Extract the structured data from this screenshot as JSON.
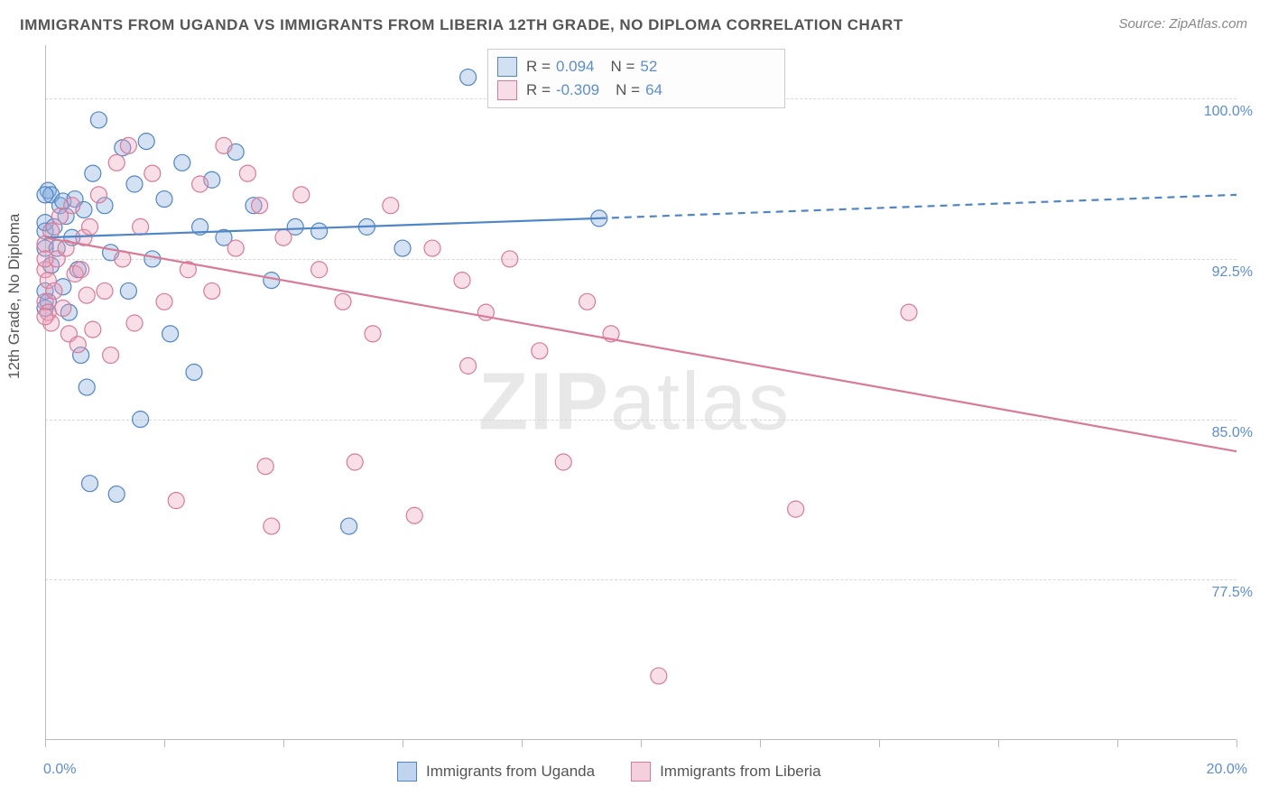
{
  "title": "IMMIGRANTS FROM UGANDA VS IMMIGRANTS FROM LIBERIA 12TH GRADE, NO DIPLOMA CORRELATION CHART",
  "source": "Source: ZipAtlas.com",
  "y_axis_label": "12th Grade, No Diploma",
  "watermark_left": "ZIP",
  "watermark_right": "atlas",
  "chart": {
    "type": "scatter",
    "background_color": "#ffffff",
    "grid_color": "#d8d8d8",
    "axis_color": "#bbbbbb",
    "tick_label_color": "#5b8dd6",
    "font_family": "Arial",
    "title_fontsize": 17,
    "label_fontsize": 17,
    "tick_fontsize": 16,
    "xlim": [
      0.0,
      20.0
    ],
    "ylim": [
      70.0,
      102.5
    ],
    "x_ticks": [
      0.0,
      2.0,
      4.0,
      6.0,
      8.0,
      10.0,
      12.0,
      14.0,
      16.0,
      18.0,
      20.0
    ],
    "y_ticks": [
      77.5,
      85.0,
      92.5,
      100.0
    ],
    "x_tick_labels": [
      "0.0%",
      "20.0%"
    ],
    "y_tick_labels": [
      "77.5%",
      "85.0%",
      "92.5%",
      "100.0%"
    ],
    "marker_radius": 9,
    "marker_opacity": 0.45,
    "line_width": 2.2,
    "series": [
      {
        "name": "Immigrants from Uganda",
        "color": "#6fa3df",
        "stroke": "#4f86c6",
        "fill": "rgba(130,170,220,0.35)",
        "r": 0.094,
        "n": 52,
        "trend": {
          "x1": 0.0,
          "y1": 93.5,
          "x2": 9.3,
          "y2": 94.4,
          "x2_ext": 20.0,
          "y2_ext": 95.5
        },
        "points": [
          [
            0.0,
            93.0
          ],
          [
            0.0,
            93.8
          ],
          [
            0.0,
            91.0
          ],
          [
            0.0,
            90.2
          ],
          [
            0.0,
            94.2
          ],
          [
            0.05,
            95.7
          ],
          [
            0.05,
            90.5
          ],
          [
            0.1,
            92.2
          ],
          [
            0.1,
            95.5
          ],
          [
            0.15,
            94.0
          ],
          [
            0.2,
            93.0
          ],
          [
            0.25,
            95.0
          ],
          [
            0.3,
            95.2
          ],
          [
            0.3,
            91.2
          ],
          [
            0.35,
            94.5
          ],
          [
            0.4,
            90.0
          ],
          [
            0.45,
            93.5
          ],
          [
            0.5,
            95.3
          ],
          [
            0.55,
            92.0
          ],
          [
            0.6,
            88.0
          ],
          [
            0.65,
            94.8
          ],
          [
            0.7,
            86.5
          ],
          [
            0.75,
            82.0
          ],
          [
            0.8,
            96.5
          ],
          [
            0.9,
            99.0
          ],
          [
            1.0,
            95.0
          ],
          [
            1.1,
            92.8
          ],
          [
            1.2,
            81.5
          ],
          [
            1.3,
            97.7
          ],
          [
            1.4,
            91.0
          ],
          [
            1.5,
            96.0
          ],
          [
            1.6,
            85.0
          ],
          [
            1.7,
            98.0
          ],
          [
            1.8,
            92.5
          ],
          [
            2.0,
            95.3
          ],
          [
            2.1,
            89.0
          ],
          [
            2.3,
            97.0
          ],
          [
            2.5,
            87.2
          ],
          [
            2.6,
            94.0
          ],
          [
            2.8,
            96.2
          ],
          [
            3.0,
            93.5
          ],
          [
            3.2,
            97.5
          ],
          [
            3.5,
            95.0
          ],
          [
            3.8,
            91.5
          ],
          [
            4.2,
            94.0
          ],
          [
            4.6,
            93.8
          ],
          [
            5.1,
            80.0
          ],
          [
            5.4,
            94.0
          ],
          [
            6.0,
            93.0
          ],
          [
            7.1,
            101.0
          ],
          [
            9.3,
            94.4
          ],
          [
            0.0,
            95.5
          ]
        ]
      },
      {
        "name": "Immigrants from Liberia",
        "color": "#e8a2b5",
        "stroke": "#d97a96",
        "fill": "rgba(235,160,185,0.35)",
        "r": -0.309,
        "n": 64,
        "trend": {
          "x1": 0.0,
          "y1": 93.5,
          "x2": 20.0,
          "y2": 83.5,
          "x2_ext": 20.0,
          "y2_ext": 83.5
        },
        "points": [
          [
            0.0,
            93.2
          ],
          [
            0.0,
            90.5
          ],
          [
            0.0,
            92.0
          ],
          [
            0.05,
            91.5
          ],
          [
            0.05,
            90.0
          ],
          [
            0.1,
            93.8
          ],
          [
            0.1,
            89.5
          ],
          [
            0.15,
            91.0
          ],
          [
            0.2,
            92.5
          ],
          [
            0.25,
            94.5
          ],
          [
            0.3,
            90.2
          ],
          [
            0.35,
            93.0
          ],
          [
            0.4,
            89.0
          ],
          [
            0.45,
            95.0
          ],
          [
            0.5,
            91.8
          ],
          [
            0.55,
            88.5
          ],
          [
            0.6,
            92.0
          ],
          [
            0.65,
            93.5
          ],
          [
            0.7,
            90.8
          ],
          [
            0.75,
            94.0
          ],
          [
            0.8,
            89.2
          ],
          [
            0.9,
            95.5
          ],
          [
            1.0,
            91.0
          ],
          [
            1.1,
            88.0
          ],
          [
            1.2,
            97.0
          ],
          [
            1.3,
            92.5
          ],
          [
            1.4,
            97.8
          ],
          [
            1.5,
            89.5
          ],
          [
            1.6,
            94.0
          ],
          [
            1.8,
            96.5
          ],
          [
            2.0,
            90.5
          ],
          [
            2.2,
            81.2
          ],
          [
            2.4,
            92.0
          ],
          [
            2.6,
            96.0
          ],
          [
            2.8,
            91.0
          ],
          [
            3.0,
            97.8
          ],
          [
            3.2,
            93.0
          ],
          [
            3.4,
            96.5
          ],
          [
            3.6,
            95.0
          ],
          [
            3.7,
            82.8
          ],
          [
            3.8,
            80.0
          ],
          [
            4.0,
            93.5
          ],
          [
            4.3,
            95.5
          ],
          [
            4.6,
            92.0
          ],
          [
            5.0,
            90.5
          ],
          [
            5.2,
            83.0
          ],
          [
            5.5,
            89.0
          ],
          [
            5.8,
            95.0
          ],
          [
            6.2,
            80.5
          ],
          [
            6.5,
            93.0
          ],
          [
            7.0,
            91.5
          ],
          [
            7.1,
            87.5
          ],
          [
            7.4,
            90.0
          ],
          [
            7.8,
            92.5
          ],
          [
            8.1,
            101.0
          ],
          [
            8.3,
            88.2
          ],
          [
            8.7,
            83.0
          ],
          [
            9.1,
            90.5
          ],
          [
            9.5,
            89.0
          ],
          [
            10.3,
            73.0
          ],
          [
            12.6,
            80.8
          ],
          [
            14.5,
            90.0
          ],
          [
            0.0,
            89.8
          ],
          [
            0.0,
            92.5
          ]
        ]
      }
    ]
  },
  "bottom_legend": [
    {
      "label": "Immigrants from Uganda",
      "swatch_fill": "rgba(130,170,220,0.5)",
      "swatch_stroke": "#4f86c6"
    },
    {
      "label": "Immigrants from Liberia",
      "swatch_fill": "rgba(235,160,185,0.5)",
      "swatch_stroke": "#d97a96"
    }
  ]
}
